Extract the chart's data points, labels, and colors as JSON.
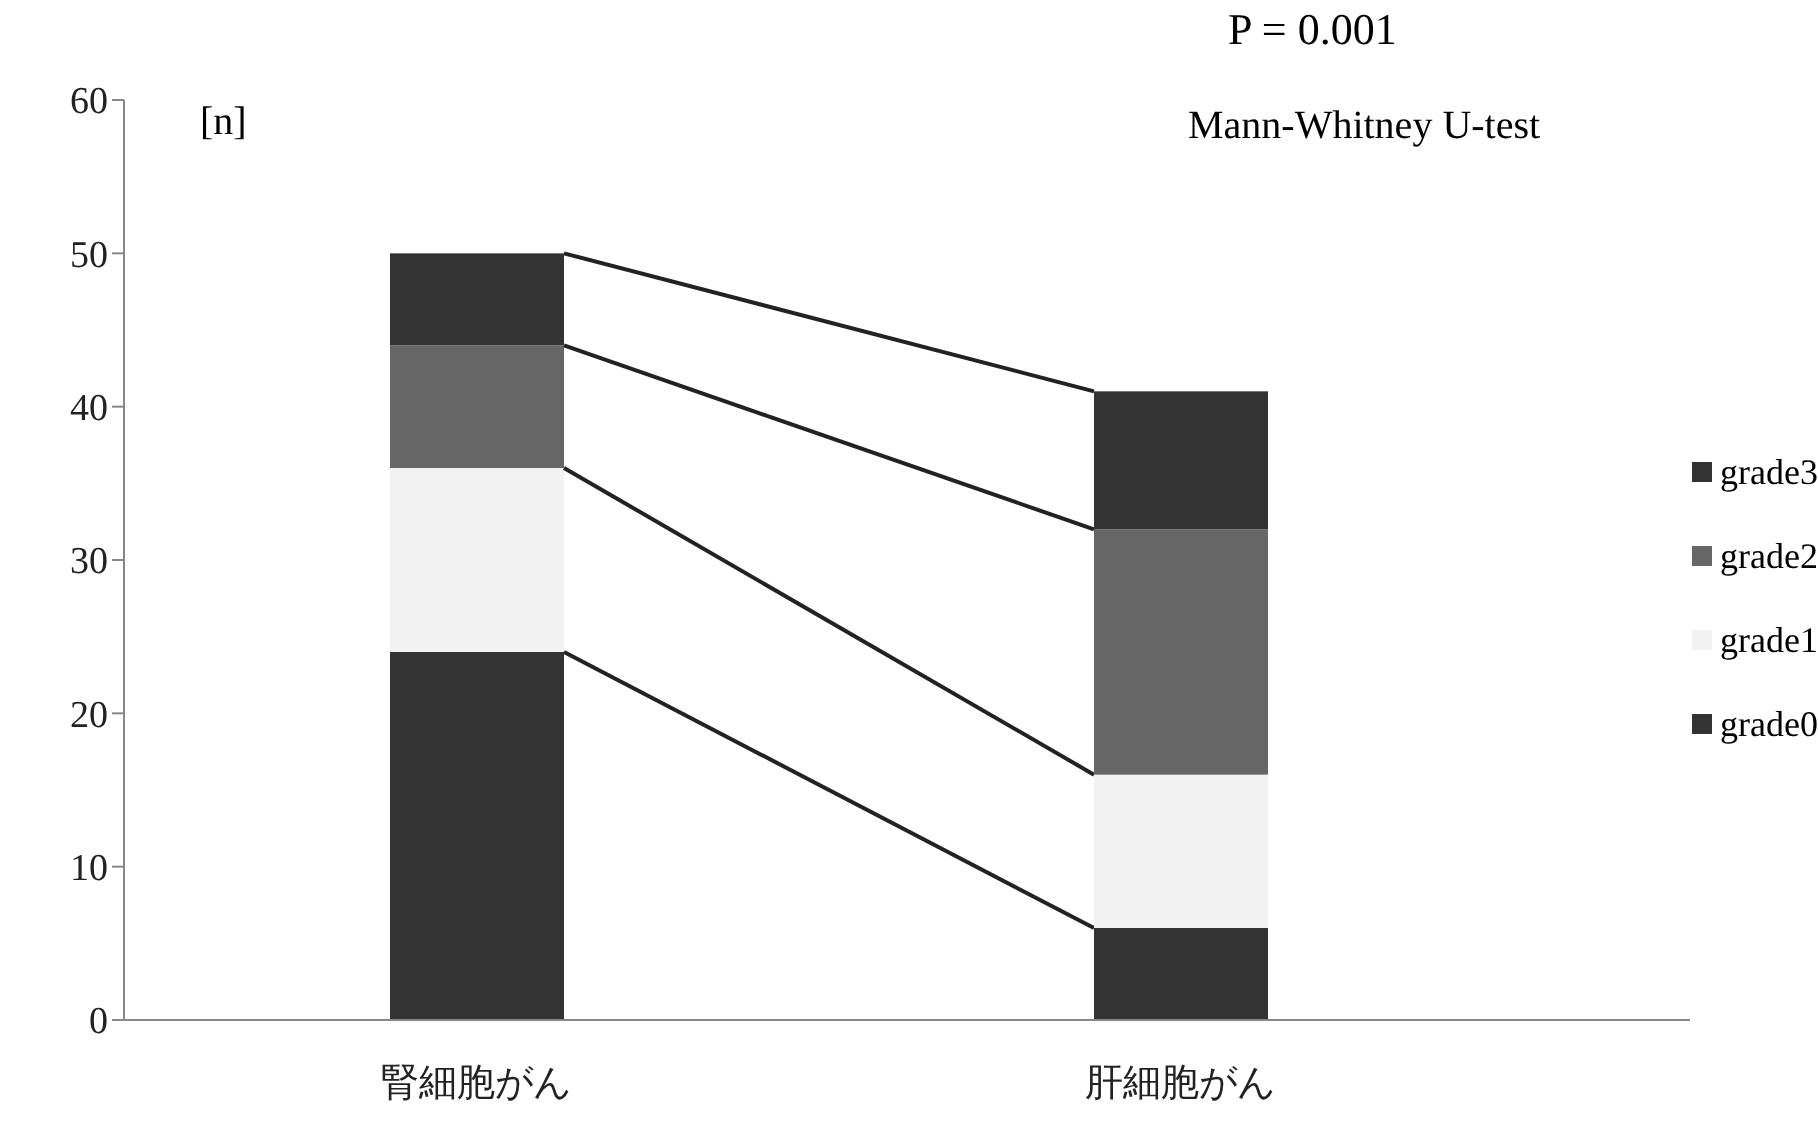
{
  "chart_data": {
    "type": "bar",
    "stacked": true,
    "categories": [
      "腎細胞がん",
      "肝細胞がん"
    ],
    "series": [
      {
        "name": "grade0",
        "color": "#333333",
        "values": [
          24,
          6
        ]
      },
      {
        "name": "grade1",
        "color": "#f2f2f2",
        "values": [
          12,
          10
        ]
      },
      {
        "name": "grade2",
        "color": "#666666",
        "values": [
          8,
          16
        ]
      },
      {
        "name": "grade3",
        "color": "#333333",
        "values": [
          6,
          9
        ]
      }
    ],
    "ylabel": "[n]",
    "ylim": [
      0,
      60
    ],
    "yticks": [
      0,
      10,
      20,
      30,
      40,
      50,
      60
    ],
    "legend": "right",
    "annotations": [
      "P = 0.001",
      "Mann-Whitney U-test"
    ]
  }
}
